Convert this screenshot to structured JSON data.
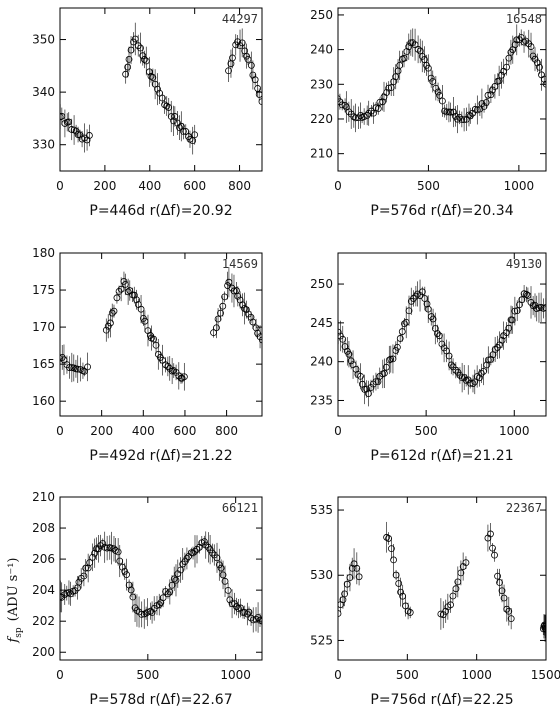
{
  "figure": {
    "ylabel": "f_sp (ADU s⁻¹)",
    "ylabel_main": "f",
    "ylabel_sub": "sp",
    "ylabel_unit": "(ADU s⁻¹)"
  },
  "chart_data": [
    {
      "type": "scatter",
      "id": "44297",
      "caption": "P=446d  r(Δf)=20.92",
      "period_days": 446,
      "r_delta_f": 20.92,
      "xlim": [
        0,
        900
      ],
      "ylim": [
        325,
        356
      ],
      "xticks": [
        0,
        200,
        400,
        600,
        800
      ],
      "yticks": [
        330,
        340,
        350
      ],
      "segments": [
        [
          0,
          130
        ],
        [
          290,
          600
        ],
        [
          750,
          900
        ]
      ],
      "points": [
        [
          0,
          335
        ],
        [
          40,
          334
        ],
        [
          80,
          332
        ],
        [
          120,
          331
        ],
        [
          300,
          344
        ],
        [
          320,
          349
        ],
        [
          340,
          350
        ],
        [
          360,
          348
        ],
        [
          400,
          344
        ],
        [
          440,
          340
        ],
        [
          480,
          337
        ],
        [
          520,
          334
        ],
        [
          560,
          332
        ],
        [
          590,
          331
        ],
        [
          760,
          345
        ],
        [
          790,
          350
        ],
        [
          810,
          349
        ],
        [
          850,
          345
        ],
        [
          880,
          341
        ],
        [
          900,
          338
        ]
      ]
    },
    {
      "type": "scatter",
      "id": "16548",
      "caption": "P=576d  r(Δf)=20.34",
      "period_days": 576,
      "r_delta_f": 20.34,
      "xlim": [
        0,
        1150
      ],
      "ylim": [
        205,
        252
      ],
      "xticks": [
        0,
        500,
        1000
      ],
      "yticks": [
        210,
        220,
        230,
        240,
        250
      ],
      "segments": [
        [
          0,
          1150
        ]
      ],
      "points": [
        [
          0,
          226
        ],
        [
          100,
          220
        ],
        [
          200,
          222
        ],
        [
          300,
          230
        ],
        [
          400,
          242
        ],
        [
          450,
          240
        ],
        [
          500,
          234
        ],
        [
          600,
          222
        ],
        [
          700,
          220
        ],
        [
          800,
          224
        ],
        [
          900,
          232
        ],
        [
          1000,
          244
        ],
        [
          1050,
          242
        ],
        [
          1150,
          230
        ]
      ]
    },
    {
      "type": "scatter",
      "id": "14569",
      "caption": "P=492d  r(Δf)=21.22",
      "period_days": 492,
      "r_delta_f": 21.22,
      "xlim": [
        0,
        970
      ],
      "ylim": [
        158,
        180
      ],
      "xticks": [
        0,
        200,
        400,
        600,
        800
      ],
      "yticks": [
        160,
        165,
        170,
        175,
        180
      ],
      "segments": [
        [
          0,
          130
        ],
        [
          220,
          600
        ],
        [
          740,
          970
        ]
      ],
      "points": [
        [
          0,
          166
        ],
        [
          60,
          164.5
        ],
        [
          120,
          164
        ],
        [
          230,
          170
        ],
        [
          300,
          176
        ],
        [
          360,
          174
        ],
        [
          420,
          170
        ],
        [
          480,
          166
        ],
        [
          540,
          164
        ],
        [
          600,
          163
        ],
        [
          750,
          170
        ],
        [
          810,
          176
        ],
        [
          860,
          174
        ],
        [
          920,
          171
        ],
        [
          970,
          168
        ]
      ]
    },
    {
      "type": "scatter",
      "id": "49130",
      "caption": "P=612d  r(Δf)=21.21",
      "period_days": 612,
      "r_delta_f": 21.21,
      "xlim": [
        0,
        1180
      ],
      "ylim": [
        233,
        254
      ],
      "xticks": [
        0,
        500,
        1000
      ],
      "yticks": [
        235,
        240,
        245,
        250
      ],
      "segments": [
        [
          0,
          1180
        ]
      ],
      "points": [
        [
          0,
          244
        ],
        [
          80,
          240
        ],
        [
          160,
          236
        ],
        [
          240,
          238
        ],
        [
          340,
          242
        ],
        [
          420,
          248
        ],
        [
          480,
          249
        ],
        [
          560,
          244
        ],
        [
          660,
          239
        ],
        [
          760,
          237
        ],
        [
          860,
          240
        ],
        [
          960,
          244
        ],
        [
          1060,
          249
        ],
        [
          1120,
          247
        ]
      ]
    },
    {
      "type": "scatter",
      "id": "66121",
      "caption": "P=578d  r(Δf)=22.67",
      "period_days": 578,
      "r_delta_f": 22.67,
      "xlim": [
        0,
        1150
      ],
      "ylim": [
        199.5,
        210
      ],
      "xticks": [
        0,
        500,
        1000
      ],
      "yticks": [
        200,
        202,
        204,
        206,
        208,
        210
      ],
      "segments": [
        [
          0,
          1150
        ]
      ],
      "points": [
        [
          0,
          203.5
        ],
        [
          80,
          204
        ],
        [
          160,
          205.5
        ],
        [
          230,
          207
        ],
        [
          320,
          206.5
        ],
        [
          380,
          205
        ],
        [
          440,
          202.5
        ],
        [
          520,
          202.5
        ],
        [
          620,
          204
        ],
        [
          720,
          206
        ],
        [
          820,
          207
        ],
        [
          900,
          206
        ],
        [
          980,
          203
        ],
        [
          1060,
          202.5
        ],
        [
          1150,
          202
        ]
      ]
    },
    {
      "type": "scatter",
      "id": "22367",
      "caption": "P=756d  r(Δf)=22.25",
      "period_days": 756,
      "r_delta_f": 22.25,
      "xlim": [
        0,
        1500
      ],
      "ylim": [
        523.5,
        536
      ],
      "xticks": [
        0,
        500,
        1000,
        1500
      ],
      "yticks": [
        525,
        530,
        535
      ],
      "segments": [
        [
          0,
          150
        ],
        [
          350,
          520
        ],
        [
          740,
          920
        ],
        [
          1080,
          1250
        ],
        [
          1480,
          1500
        ]
      ],
      "points": [
        [
          0,
          527
        ],
        [
          60,
          529
        ],
        [
          120,
          531
        ],
        [
          150,
          530
        ],
        [
          370,
          533
        ],
        [
          420,
          530
        ],
        [
          470,
          528
        ],
        [
          520,
          527
        ],
        [
          750,
          527
        ],
        [
          820,
          528
        ],
        [
          880,
          530
        ],
        [
          920,
          531
        ],
        [
          1100,
          533
        ],
        [
          1150,
          530
        ],
        [
          1200,
          528
        ],
        [
          1250,
          526.5
        ],
        [
          1490,
          526
        ]
      ]
    }
  ]
}
